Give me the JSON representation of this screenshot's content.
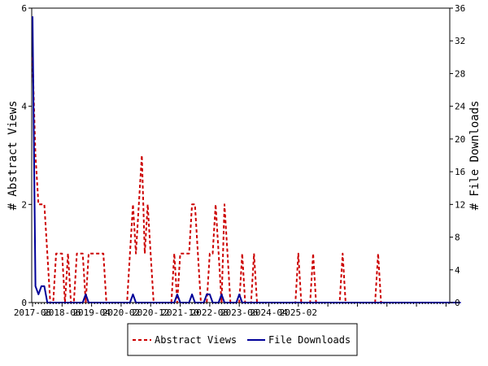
{
  "chart_data": {
    "type": "line",
    "ylabel_left": "# Abstract Views",
    "ylabel_right": "# File Downloads",
    "x_tick_labels": [
      "2017-08",
      "2018-06",
      "2019-04",
      "2020-02",
      "2020-12",
      "2021-10",
      "2022-08",
      "2023-06",
      "2024-04",
      "2025-02"
    ],
    "y_left_ticks": [
      0,
      2,
      4,
      6
    ],
    "y_right_ticks": [
      0,
      4,
      8,
      12,
      16,
      20,
      24,
      28,
      32,
      36
    ],
    "y_left_lim": [
      0,
      6
    ],
    "y_right_lim": [
      0,
      36
    ],
    "x_start_month": "2017-08",
    "legend_position": "bottom",
    "grid": false,
    "series": [
      {
        "name": "Abstract Views",
        "axis": "left",
        "color": "#cc0000",
        "style": "dashed",
        "values": [
          5,
          3,
          2,
          2,
          2,
          1,
          0,
          0,
          1,
          1,
          1,
          0,
          1,
          0,
          0,
          1,
          1,
          1,
          0,
          1,
          1,
          1,
          1,
          1,
          1,
          0,
          0,
          0,
          0,
          0,
          0,
          0,
          0,
          1,
          2,
          1,
          2,
          3,
          1,
          2,
          1,
          0,
          0,
          0,
          0,
          0,
          0,
          0,
          1,
          0,
          1,
          1,
          1,
          1,
          2,
          2,
          1,
          0,
          0,
          0,
          1,
          1,
          2,
          1,
          0,
          2,
          1,
          0,
          0,
          0,
          0,
          1,
          0,
          0,
          0,
          1,
          0,
          0,
          0,
          0,
          0,
          0,
          0,
          0,
          0,
          0,
          0,
          0,
          0,
          0,
          1,
          0,
          0,
          0,
          0,
          1,
          0,
          0,
          0,
          0,
          0,
          0,
          0,
          0,
          0,
          1,
          0,
          0,
          0,
          0,
          0,
          0,
          0,
          0,
          0,
          0,
          0,
          1,
          0,
          0,
          0,
          0,
          0,
          0,
          0,
          0,
          0,
          0,
          0,
          0,
          0,
          0,
          0,
          0,
          0,
          0,
          0,
          0,
          0,
          0,
          0,
          0
        ]
      },
      {
        "name": "File Downloads",
        "axis": "right",
        "color": "#000099",
        "style": "solid",
        "values": [
          35,
          2,
          1,
          2,
          2,
          0,
          0,
          0,
          0,
          0,
          0,
          0,
          0,
          0,
          0,
          0,
          0,
          0,
          1,
          0,
          0,
          0,
          0,
          0,
          0,
          0,
          0,
          0,
          0,
          0,
          0,
          0,
          0,
          0,
          1,
          0,
          0,
          0,
          0,
          0,
          0,
          0,
          0,
          0,
          0,
          0,
          0,
          0,
          0,
          1,
          0,
          0,
          0,
          0,
          1,
          0,
          0,
          0,
          0,
          1,
          1,
          0,
          0,
          0,
          1,
          0,
          0,
          0,
          0,
          0,
          1,
          0,
          0,
          0,
          0,
          0,
          0,
          0,
          0,
          0,
          0,
          0,
          0,
          0,
          0,
          0,
          0,
          0,
          0,
          0,
          0,
          0,
          0,
          0,
          0,
          0,
          0,
          0,
          0,
          0,
          0,
          0,
          0,
          0,
          0,
          0,
          0,
          0,
          0,
          0,
          0,
          0,
          0,
          0,
          0,
          0,
          0,
          0,
          0,
          0,
          0,
          0,
          0,
          0,
          0,
          0,
          0,
          0,
          0,
          0,
          0,
          0,
          0,
          0,
          0,
          0,
          0,
          0,
          0,
          0,
          0,
          0,
          0,
          0,
          0,
          0
        ]
      }
    ]
  }
}
